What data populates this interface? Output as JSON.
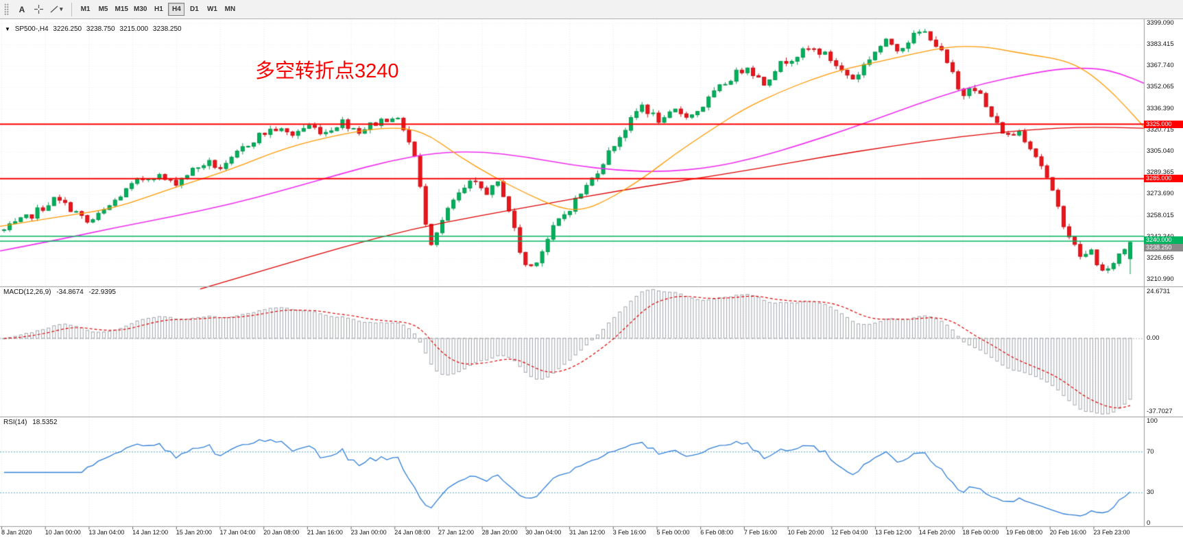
{
  "toolbar": {
    "text_tool": "A",
    "dropdown_caret": "▾",
    "timeframes": [
      "M1",
      "M5",
      "M15",
      "M30",
      "H1",
      "H4",
      "D1",
      "W1",
      "MN"
    ],
    "active_timeframe": "H4"
  },
  "chart": {
    "symbol_header": {
      "collapse_arrow": "▼",
      "symbol": "SP500-,H4",
      "open": "3226.250",
      "high": "3238.750",
      "low": "3215.000",
      "close": "3238.250"
    },
    "annotation": {
      "text": "多空转折点3240",
      "color": "#fe0000"
    },
    "price_axis": {
      "labels": [
        "3399.090",
        "3383.415",
        "3367.740",
        "3352.065",
        "3336.390",
        "3320.715",
        "3305.040",
        "3289.365",
        "3273.690",
        "3258.015",
        "3242.340",
        "3226.665",
        "3210.990"
      ]
    },
    "time_axis": {
      "labels": [
        "8 Jan 2020",
        "10 Jan 00:00",
        "13 Jan 04:00",
        "14 Jan 12:00",
        "15 Jan 20:00",
        "17 Jan 04:00",
        "20 Jan 08:00",
        "21 Jan 16:00",
        "23 Jan 00:00",
        "24 Jan 08:00",
        "27 Jan 12:00",
        "28 Jan 20:00",
        "30 Jan 04:00",
        "31 Jan 12:00",
        "3 Feb 16:00",
        "5 Feb 00:00",
        "6 Feb 08:00",
        "7 Feb 16:00",
        "10 Feb 20:00",
        "12 Feb 04:00",
        "13 Feb 12:00",
        "14 Feb 20:00",
        "18 Feb 00:00",
        "19 Feb 08:00",
        "20 Feb 16:00",
        "23 Feb 23:00"
      ]
    },
    "levels": [
      {
        "label": "3325.000",
        "price": 3325.0,
        "color": "#fe0000",
        "style": "solid",
        "thickness": 2
      },
      {
        "label": "3285.000",
        "price": 3285.0,
        "color": "#fe0000",
        "style": "solid",
        "thickness": 2
      },
      {
        "label": "3240.000",
        "price": 3240.0,
        "color": "#00b35f",
        "style": "band",
        "band": [
          3242.8,
          3239.2
        ],
        "thickness": 1.5
      }
    ],
    "current_price_tag": {
      "label": "3238.250",
      "price": 3238.25,
      "color": "#8a8a8a"
    },
    "candles": {
      "count": 204,
      "up_fill": "#00b05c",
      "up_stroke": "#089850",
      "down_fill": "#e9161c",
      "down_stroke": "#c51218",
      "last": {
        "open": 3226.25,
        "high": 3238.75,
        "low": 3215.0,
        "close": 3238.25
      },
      "close_path": [
        [
          0.0,
          3247
        ],
        [
          0.02,
          3256
        ],
        [
          0.045,
          3270
        ],
        [
          0.06,
          3263
        ],
        [
          0.075,
          3252
        ],
        [
          0.09,
          3262
        ],
        [
          0.105,
          3274
        ],
        [
          0.12,
          3284
        ],
        [
          0.135,
          3288
        ],
        [
          0.15,
          3281
        ],
        [
          0.165,
          3290
        ],
        [
          0.18,
          3297
        ],
        [
          0.195,
          3292
        ],
        [
          0.21,
          3306
        ],
        [
          0.225,
          3316
        ],
        [
          0.24,
          3322
        ],
        [
          0.255,
          3317
        ],
        [
          0.27,
          3324
        ],
        [
          0.285,
          3319
        ],
        [
          0.3,
          3327
        ],
        [
          0.315,
          3320
        ],
        [
          0.33,
          3326
        ],
        [
          0.345,
          3331
        ],
        [
          0.355,
          3322
        ],
        [
          0.365,
          3300
        ],
        [
          0.372,
          3265
        ],
        [
          0.378,
          3237
        ],
        [
          0.385,
          3248
        ],
        [
          0.4,
          3270
        ],
        [
          0.415,
          3282
        ],
        [
          0.43,
          3275
        ],
        [
          0.44,
          3282
        ],
        [
          0.45,
          3258
        ],
        [
          0.458,
          3232
        ],
        [
          0.465,
          3218
        ],
        [
          0.475,
          3228
        ],
        [
          0.49,
          3252
        ],
        [
          0.5,
          3261
        ],
        [
          0.51,
          3272
        ],
        [
          0.52,
          3282
        ],
        [
          0.53,
          3295
        ],
        [
          0.54,
          3308
        ],
        [
          0.55,
          3320
        ],
        [
          0.56,
          3331
        ],
        [
          0.565,
          3340
        ],
        [
          0.575,
          3332
        ],
        [
          0.585,
          3326
        ],
        [
          0.595,
          3335
        ],
        [
          0.61,
          3331
        ],
        [
          0.62,
          3338
        ],
        [
          0.63,
          3347
        ],
        [
          0.64,
          3355
        ],
        [
          0.65,
          3362
        ],
        [
          0.66,
          3368
        ],
        [
          0.668,
          3360
        ],
        [
          0.675,
          3355
        ],
        [
          0.685,
          3366
        ],
        [
          0.695,
          3372
        ],
        [
          0.705,
          3376
        ],
        [
          0.715,
          3380
        ],
        [
          0.725,
          3378
        ],
        [
          0.735,
          3372
        ],
        [
          0.745,
          3363
        ],
        [
          0.755,
          3358
        ],
        [
          0.765,
          3370
        ],
        [
          0.775,
          3380
        ],
        [
          0.785,
          3386
        ],
        [
          0.795,
          3380
        ],
        [
          0.805,
          3388
        ],
        [
          0.815,
          3393
        ],
        [
          0.822,
          3390
        ],
        [
          0.832,
          3378
        ],
        [
          0.842,
          3362
        ],
        [
          0.85,
          3344
        ],
        [
          0.858,
          3355
        ],
        [
          0.865,
          3350
        ],
        [
          0.872,
          3337
        ],
        [
          0.882,
          3324
        ],
        [
          0.892,
          3316
        ],
        [
          0.902,
          3320
        ],
        [
          0.912,
          3308
        ],
        [
          0.922,
          3294
        ],
        [
          0.932,
          3272
        ],
        [
          0.942,
          3250
        ],
        [
          0.95,
          3236
        ],
        [
          0.958,
          3226
        ],
        [
          0.965,
          3233
        ],
        [
          0.972,
          3221
        ],
        [
          0.978,
          3213
        ],
        [
          0.985,
          3224
        ],
        [
          0.99,
          3229
        ],
        [
          1.0,
          3238
        ]
      ]
    },
    "ma_lines": [
      {
        "name": "ma-fast",
        "color": "#ff9900",
        "width": 1.3,
        "anchors": [
          [
            0,
            3250
          ],
          [
            0.05,
            3257
          ],
          [
            0.1,
            3263
          ],
          [
            0.15,
            3278
          ],
          [
            0.2,
            3291
          ],
          [
            0.25,
            3308
          ],
          [
            0.3,
            3318
          ],
          [
            0.34,
            3323
          ],
          [
            0.37,
            3320
          ],
          [
            0.4,
            3302
          ],
          [
            0.43,
            3287
          ],
          [
            0.46,
            3274
          ],
          [
            0.49,
            3263
          ],
          [
            0.51,
            3262
          ],
          [
            0.53,
            3269
          ],
          [
            0.56,
            3284
          ],
          [
            0.59,
            3303
          ],
          [
            0.62,
            3320
          ],
          [
            0.65,
            3336
          ],
          [
            0.68,
            3348
          ],
          [
            0.71,
            3358
          ],
          [
            0.74,
            3366
          ],
          [
            0.77,
            3371
          ],
          [
            0.8,
            3377
          ],
          [
            0.83,
            3382
          ],
          [
            0.86,
            3382
          ],
          [
            0.88,
            3379
          ],
          [
            0.9,
            3376
          ],
          [
            0.93,
            3372
          ],
          [
            0.95,
            3364
          ],
          [
            0.97,
            3350
          ],
          [
            0.985,
            3337
          ],
          [
            1.0,
            3323
          ]
        ]
      },
      {
        "name": "ma-medium",
        "color": "#f02ef0",
        "width": 1.6,
        "anchors": [
          [
            0,
            3232
          ],
          [
            0.05,
            3240
          ],
          [
            0.1,
            3249
          ],
          [
            0.15,
            3257
          ],
          [
            0.2,
            3266
          ],
          [
            0.25,
            3277
          ],
          [
            0.3,
            3289
          ],
          [
            0.34,
            3298
          ],
          [
            0.38,
            3304
          ],
          [
            0.42,
            3305
          ],
          [
            0.46,
            3301
          ],
          [
            0.5,
            3295
          ],
          [
            0.54,
            3291
          ],
          [
            0.58,
            3290
          ],
          [
            0.62,
            3293
          ],
          [
            0.66,
            3300
          ],
          [
            0.7,
            3310
          ],
          [
            0.74,
            3321
          ],
          [
            0.78,
            3333
          ],
          [
            0.82,
            3345
          ],
          [
            0.86,
            3355
          ],
          [
            0.9,
            3362
          ],
          [
            0.93,
            3366
          ],
          [
            0.96,
            3366
          ],
          [
            0.98,
            3362
          ],
          [
            1.0,
            3355
          ]
        ]
      },
      {
        "name": "ma-slow",
        "color": "#e00000",
        "width": 1.3,
        "anchors": [
          [
            0.175,
            3204
          ],
          [
            0.24,
            3220
          ],
          [
            0.3,
            3235
          ],
          [
            0.36,
            3248
          ],
          [
            0.42,
            3258
          ],
          [
            0.48,
            3267
          ],
          [
            0.54,
            3276
          ],
          [
            0.6,
            3284
          ],
          [
            0.66,
            3292
          ],
          [
            0.72,
            3301
          ],
          [
            0.78,
            3309
          ],
          [
            0.84,
            3316
          ],
          [
            0.9,
            3321
          ],
          [
            0.95,
            3323
          ],
          [
            1.0,
            3322
          ]
        ]
      }
    ]
  },
  "macd_panel": {
    "name": "MACD(12,26,9)",
    "value_main": "-34.8674",
    "value_signal": "-22.9395",
    "scale_top": "24.6731",
    "scale_zero": "0.00",
    "scale_bottom": "-37.7027",
    "histogram_color": "#a0a4ab",
    "signal_color": "#de0000"
  },
  "rsi_panel": {
    "name": "RSI(14)",
    "value": "18.5352",
    "line_color": "#2f7ed8",
    "level_color": "#55aacc",
    "scale_labels": [
      {
        "text": "100",
        "value": 100
      },
      {
        "text": "70",
        "value": 70
      },
      {
        "text": "30",
        "value": 30
      },
      {
        "text": "0",
        "value": 0
      }
    ]
  }
}
